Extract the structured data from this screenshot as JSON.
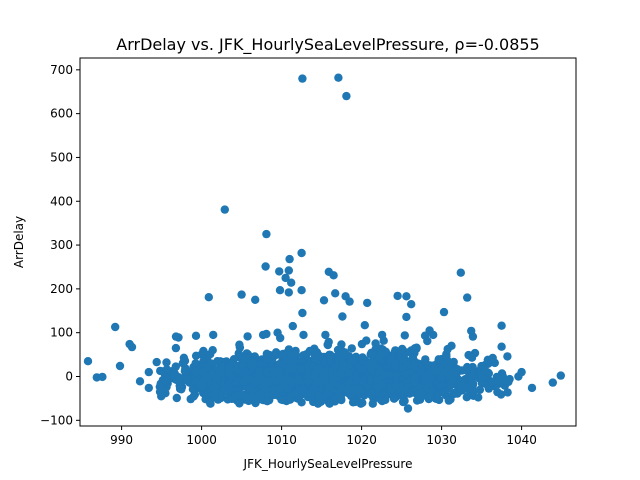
{
  "chart_data": {
    "type": "scatter",
    "title": "ArrDelay vs. JFK_HourlySeaLevelPressure, ρ=-0.0855",
    "xlabel": "JFK_HourlySeaLevelPressure",
    "ylabel": "ArrDelay",
    "xlim": [
      984.8,
      1046.8
    ],
    "ylim": [
      -113,
      727
    ],
    "x_ticks": [
      990,
      1000,
      1010,
      1020,
      1030,
      1040
    ],
    "y_ticks": [
      -100,
      0,
      100,
      200,
      300,
      400,
      500,
      600,
      700
    ],
    "grid": false,
    "legend": "none",
    "marker_color": "#1f77b4",
    "outliers": [
      [
        1012.6,
        680
      ],
      [
        1017.1,
        682
      ],
      [
        1018.1,
        640
      ],
      [
        1002.9,
        381
      ],
      [
        1008.1,
        325
      ],
      [
        1012.5,
        282
      ],
      [
        1011.0,
        268
      ],
      [
        1008.0,
        251
      ],
      [
        1015.9,
        239
      ],
      [
        1016.5,
        231
      ],
      [
        1032.4,
        237
      ],
      [
        1009.7,
        240
      ],
      [
        1010.5,
        225
      ],
      [
        1010.9,
        242
      ],
      [
        1011.2,
        214
      ],
      [
        1012.5,
        197
      ],
      [
        1015.3,
        174
      ],
      [
        1016.7,
        190
      ],
      [
        1018.0,
        183
      ],
      [
        1018.5,
        171
      ],
      [
        1020.7,
        168
      ],
      [
        1025.6,
        183
      ],
      [
        1026.2,
        165
      ],
      [
        1033.2,
        180
      ],
      [
        1030.3,
        147
      ],
      [
        1005.0,
        187
      ],
      [
        1000.9,
        181
      ],
      [
        1006.7,
        175
      ],
      [
        1010.9,
        192
      ],
      [
        1009.8,
        197
      ],
      [
        1008.1,
        97
      ],
      [
        1012.6,
        145
      ],
      [
        1017.6,
        137
      ],
      [
        989.2,
        113
      ],
      [
        1033.7,
        104
      ],
      [
        1037.5,
        116
      ],
      [
        1037.5,
        68
      ],
      [
        1025.6,
        136
      ],
      [
        1028.5,
        105
      ],
      [
        1011.4,
        115
      ],
      [
        1020.4,
        117
      ],
      [
        996.8,
        91
      ],
      [
        999.3,
        93
      ],
      [
        1009.5,
        100
      ],
      [
        1024.5,
        184
      ],
      [
        985.8,
        35
      ],
      [
        986.9,
        -2
      ],
      [
        987.6,
        -1
      ],
      [
        989.8,
        24
      ],
      [
        991.0,
        74
      ],
      [
        991.3,
        67
      ],
      [
        992.3,
        -11
      ],
      [
        993.4,
        10
      ],
      [
        993.4,
        -26
      ],
      [
        994.8,
        -35
      ],
      [
        996.9,
        -49
      ],
      [
        1025.8,
        -73
      ],
      [
        1041.3,
        -26
      ],
      [
        1043.9,
        -14
      ],
      [
        1044.9,
        2
      ],
      [
        1040.0,
        10
      ],
      [
        1039.6,
        0
      ],
      [
        1038.5,
        -6
      ],
      [
        1035.0,
        -2
      ],
      [
        1033.8,
        43
      ]
    ],
    "cloud": {
      "x_range": [
        993.5,
        1038.5
      ],
      "x_center": 1016,
      "x_spread": 9.5,
      "y_center": -5,
      "y_spread": 22,
      "y_min": -62,
      "y_max": 95,
      "count": 2600,
      "seed": 7
    }
  }
}
